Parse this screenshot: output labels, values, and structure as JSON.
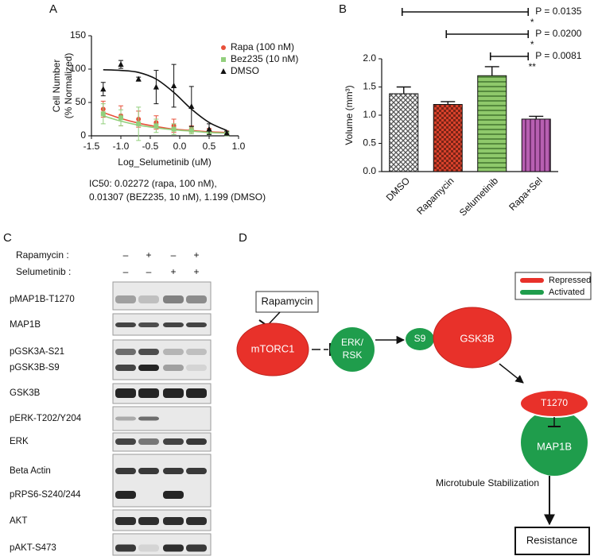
{
  "chart_data": [
    {
      "type": "scatter",
      "panel_label": "A",
      "y_label": [
        "Cell Number",
        "(% Normalized)"
      ],
      "x_label": "Log_Selumetinib (uM)",
      "xlim": [
        -1.5,
        1.0
      ],
      "xticks": [
        -1.5,
        {
          "value": -1,
          "label": "-1.0"
        },
        -0.5,
        {
          "value": 0,
          "label": "0.0"
        },
        0.5,
        {
          "value": 1,
          "label": "1.0"
        }
      ],
      "ylim": [
        0,
        150
      ],
      "yticks": [
        0,
        50,
        100,
        150
      ],
      "x": [
        -1.3,
        -1.0,
        -0.7,
        -0.4,
        -0.1,
        0.2,
        0.5,
        0.8
      ],
      "series": [
        {
          "name": "Rapa (100 nM)",
          "color": "#e8503a",
          "marker": "circle",
          "values": [
            40,
            30,
            25,
            20,
            15,
            10,
            8,
            5
          ],
          "errors": [
            12,
            15,
            12,
            10,
            10,
            5,
            3,
            2
          ],
          "fit": [
            35,
            26,
            19,
            14,
            10,
            8,
            6,
            5
          ]
        },
        {
          "name": "Bez235 (10 nM)",
          "color": "#92cf7c",
          "marker": "square",
          "values": [
            33,
            27,
            18,
            15,
            10,
            8,
            5,
            3
          ],
          "errors": [
            15,
            12,
            25,
            10,
            8,
            5,
            3,
            2
          ],
          "fit": [
            30,
            22,
            16,
            12,
            9,
            7,
            5,
            4
          ]
        },
        {
          "name": "DMSO",
          "color": "#111111",
          "marker": "triangle",
          "values": [
            70,
            107,
            85,
            73,
            75,
            44,
            10,
            4
          ],
          "errors": [
            10,
            6,
            3,
            25,
            32,
            30,
            8,
            3
          ],
          "fit": [
            99,
            98,
            95,
            85,
            65,
            40,
            20,
            8
          ]
        }
      ],
      "caption": [
        "IC50: 0.02272 (rapa, 100 nM),",
        "0.01307 (BEZ235, 10 nM), 1.199 (DMSO)"
      ]
    },
    {
      "type": "bar",
      "panel_label": "B",
      "y_label": "Volume (mm³)",
      "categories": [
        "DMSO",
        "Rapamycin",
        "Selumetinib",
        "Rapa+Sel"
      ],
      "values": [
        1.38,
        1.19,
        1.7,
        0.93
      ],
      "errors": [
        0.12,
        0.05,
        0.16,
        0.05
      ],
      "colors": [
        "#555555",
        "#d9412b",
        "#8fc96b",
        "#b75fb1"
      ],
      "patterns": [
        "crosshatch",
        "checker",
        "hstripe",
        "vstripe"
      ],
      "ylim": [
        0,
        2.0
      ],
      "yticks": [
        {
          "value": 0,
          "label": "0.0"
        },
        0.5,
        {
          "value": 1,
          "label": "1.0"
        },
        1.5,
        {
          "value": 2,
          "label": "2.0"
        }
      ],
      "comparisons": [
        {
          "from": 0,
          "to": 3,
          "label": "P = 0.0135",
          "stars": "*"
        },
        {
          "from": 1,
          "to": 3,
          "label": "P = 0.0200",
          "stars": "*"
        },
        {
          "from": 2,
          "to": 3,
          "label": "P = 0.0081",
          "stars": "**"
        }
      ]
    }
  ],
  "blot": {
    "panel_label": "C",
    "treatments": [
      {
        "name": "Rapamycin :",
        "signs": [
          "–",
          "+",
          "–",
          "+"
        ]
      },
      {
        "name": "Selumetinib :",
        "signs": [
          "–",
          "–",
          "+",
          "+"
        ]
      }
    ],
    "rows": [
      "pMAP1B-T1270",
      "MAP1B",
      "pGSK3A-S21",
      "pGSK3B-S9",
      "GSK3B",
      "pERK-T202/Y204",
      "ERK",
      "Beta Actin",
      "pRPS6-S240/244",
      "AKT",
      "pAKT-S473"
    ]
  },
  "diagram": {
    "panel_label": "D",
    "inhibitor": "Rapamycin",
    "nodes": {
      "mtorc1": "mTORC1",
      "erk_rsk": [
        "ERK/",
        "RSK"
      ],
      "s9": "S9",
      "gsk3b": "GSK3B",
      "t1270": "T1270",
      "map1b": "MAP1B"
    },
    "process": "Microtubule Stabilization",
    "outcome": "Resistance",
    "legend": [
      "Repressed",
      "Activated"
    ]
  }
}
